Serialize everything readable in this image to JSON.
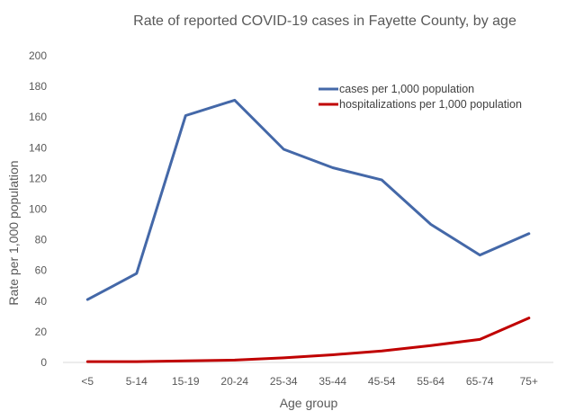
{
  "chart_data": {
    "type": "line",
    "title": "Rate of reported COVID-19 cases in Fayette County, by age",
    "xlabel": "Age group",
    "ylabel": "Rate per 1,000 population",
    "ylim": [
      0,
      200
    ],
    "yticks": [
      0,
      20,
      40,
      60,
      80,
      100,
      120,
      140,
      160,
      180,
      200
    ],
    "grid": false,
    "legend_position": "top-right",
    "categories": [
      "<5",
      "5-14",
      "15-19",
      "20-24",
      "25-34",
      "35-44",
      "45-54",
      "55-64",
      "65-74",
      "75+"
    ],
    "series": [
      {
        "name": "cases per 1,000 population",
        "color": "#4468A8",
        "values": [
          41,
          58,
          161,
          171,
          139,
          127,
          119,
          90,
          70,
          84
        ]
      },
      {
        "name": "hospitalizations per 1,000 population",
        "color": "#C00000",
        "values": [
          0.5,
          0.5,
          1,
          1.5,
          3,
          5,
          7.5,
          11,
          15,
          29
        ]
      }
    ]
  }
}
